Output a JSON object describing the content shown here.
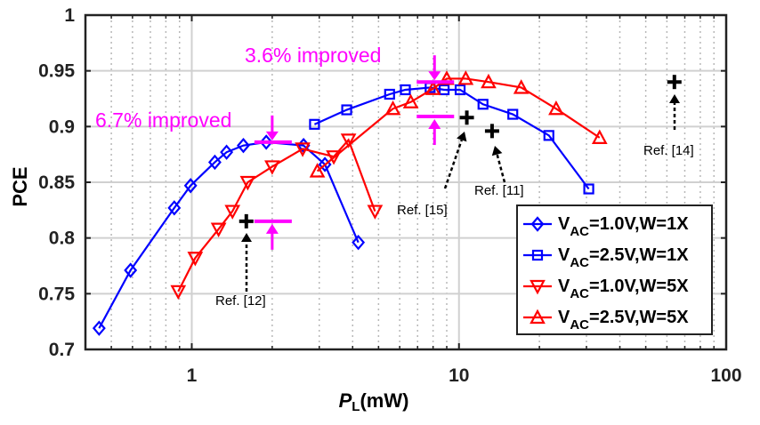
{
  "chart_data": {
    "type": "line",
    "title": "",
    "xlabel": "P",
    "xlabel_sub": "L",
    "xlabel_unit": "(mW)",
    "ylabel": "PCE",
    "xscale": "log",
    "xlim": [
      0.4,
      100
    ],
    "ylim": [
      0.7,
      1.0
    ],
    "grid": true,
    "xticks": [
      1,
      10,
      100
    ],
    "xtick_labels": [
      "1",
      "10",
      "100"
    ],
    "yticks": [
      0.7,
      0.75,
      0.8,
      0.85,
      0.9,
      0.95,
      1.0
    ],
    "ytick_labels": [
      "0.7",
      "0.75",
      "0.8",
      "0.85",
      "0.9",
      "0.95",
      "1"
    ],
    "legend_position": "bottom-right",
    "series": [
      {
        "name": "VAC=1.0V,W=1X",
        "label_main": "V",
        "label_sub": "AC",
        "label_rest": "=1.0V,W=1X",
        "color": "#0000ff",
        "marker": "diamond",
        "x": [
          0.45,
          0.59,
          0.86,
          0.99,
          1.22,
          1.35,
          1.56,
          1.9,
          2.62,
          3.15,
          4.2
        ],
        "y": [
          0.719,
          0.771,
          0.827,
          0.847,
          0.868,
          0.877,
          0.883,
          0.886,
          0.883,
          0.866,
          0.796
        ]
      },
      {
        "name": "VAC=2.5V,W=1X",
        "label_main": "V",
        "label_sub": "AC",
        "label_rest": "=2.5V,W=1X",
        "color": "#0000ff",
        "marker": "square",
        "x": [
          2.88,
          3.8,
          5.5,
          6.3,
          7.8,
          8.8,
          10.1,
          12.3,
          15.9,
          21.7,
          30.6
        ],
        "y": [
          0.902,
          0.915,
          0.929,
          0.933,
          0.935,
          0.933,
          0.933,
          0.92,
          0.911,
          0.892,
          0.844
        ]
      },
      {
        "name": "VAC=1.0V,W=5X",
        "label_main": "V",
        "label_sub": "AC",
        "label_rest": "=1.0V,W=5X",
        "color": "#ff0000",
        "marker": "triangle-down",
        "x": [
          0.89,
          1.03,
          1.26,
          1.42,
          1.62,
          2.0,
          2.6,
          3.4,
          3.86,
          4.85
        ],
        "y": [
          0.752,
          0.782,
          0.808,
          0.824,
          0.85,
          0.864,
          0.88,
          0.873,
          0.888,
          0.824
        ]
      },
      {
        "name": "VAC=2.5V,W=5X",
        "label_main": "V",
        "label_sub": "AC",
        "label_rest": "=2.5V,W=5X",
        "color": "#ff0000",
        "marker": "triangle-up",
        "x": [
          2.95,
          5.66,
          6.6,
          8.0,
          9.0,
          10.6,
          12.9,
          17.1,
          23.1,
          33.6
        ],
        "y": [
          0.86,
          0.916,
          0.922,
          0.934,
          0.943,
          0.943,
          0.94,
          0.935,
          0.916,
          0.89
        ]
      }
    ],
    "references": [
      {
        "label": "Ref. [12]",
        "x": 1.6,
        "y": 0.815
      },
      {
        "label": "Ref. [15]",
        "x": 10.7,
        "y": 0.908
      },
      {
        "label": "Ref. [11]",
        "x": 13.3,
        "y": 0.896
      },
      {
        "label": "Ref. [14]",
        "x": 64,
        "y": 0.94
      }
    ],
    "annotations": [
      {
        "text": "6.7% improved",
        "color": "#ff00ff",
        "x": 2.0,
        "y_top": 0.886,
        "y_bottom": 0.815
      },
      {
        "text": "3.6% improved",
        "color": "#ff00ff",
        "x": 8.1,
        "y_top": 0.94,
        "y_bottom": 0.909
      }
    ]
  }
}
